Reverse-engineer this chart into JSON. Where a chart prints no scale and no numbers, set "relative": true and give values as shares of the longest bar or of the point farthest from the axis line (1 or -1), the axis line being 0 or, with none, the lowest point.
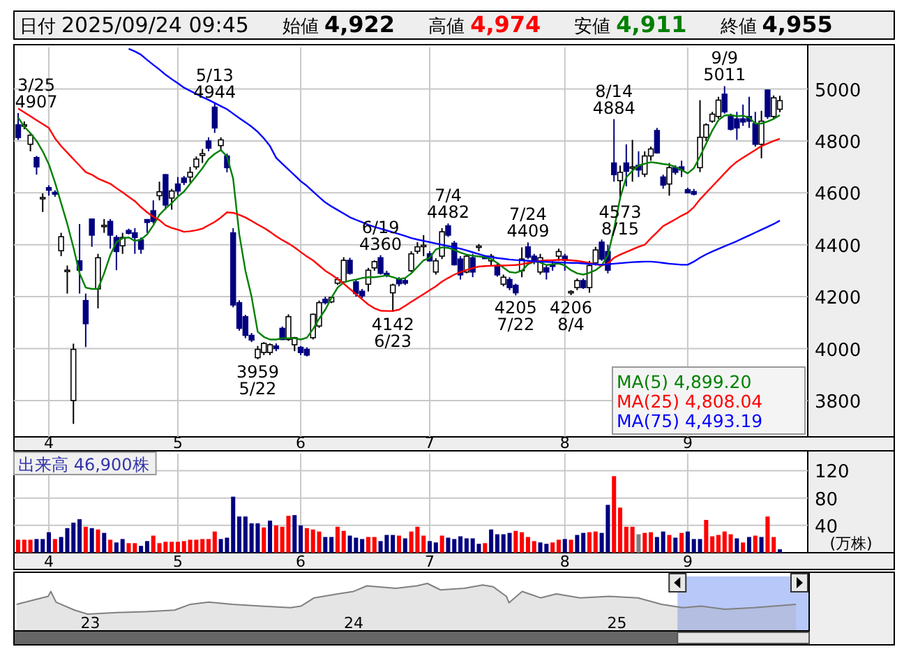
{
  "chart_data": [
    {
      "type": "candlestick",
      "categories": [
        null,
        null,
        null,
        null,
        null,
        "4",
        null,
        null,
        null,
        null,
        null,
        null,
        null,
        null,
        null,
        null,
        null,
        null,
        null,
        null,
        null,
        null,
        null,
        null,
        null,
        null,
        "5",
        null,
        null,
        null,
        null,
        null,
        null,
        null,
        null,
        null,
        null,
        null,
        null,
        null,
        null,
        null,
        null,
        null,
        null,
        null,
        "6",
        null,
        null,
        null,
        null,
        null,
        null,
        null,
        null,
        null,
        null,
        null,
        null,
        null,
        null,
        null,
        null,
        null,
        null,
        null,
        null,
        "7",
        null,
        null,
        null,
        null,
        null,
        null,
        null,
        null,
        null,
        null,
        null,
        null,
        null,
        null,
        null,
        null,
        null,
        null,
        null,
        null,
        null,
        "8",
        null,
        null,
        null,
        null,
        null,
        null,
        null,
        null,
        null,
        null,
        null,
        null,
        null,
        null,
        null,
        null,
        null,
        null,
        null,
        "9",
        null,
        null,
        null,
        null,
        null,
        null,
        null,
        null,
        null,
        null,
        null,
        null,
        null,
        null,
        null
      ],
      "ohlc": [
        [
          4862,
          4907,
          4804,
          4813
        ],
        [
          4858,
          4875,
          4845,
          4862
        ],
        [
          4787,
          4831,
          4760,
          4822
        ],
        [
          4736,
          4742,
          4670,
          4700
        ],
        [
          4578,
          4598,
          4526,
          4582
        ],
        [
          4620,
          4629,
          4589,
          4610
        ],
        [
          4602,
          4610,
          4585,
          4595
        ],
        [
          4377,
          4446,
          4356,
          4431
        ],
        [
          4300,
          4320,
          4212,
          4302
        ],
        [
          3800,
          4019,
          3710,
          3997
        ],
        [
          4338,
          4480,
          4212,
          4302
        ],
        [
          4185,
          4212,
          4006,
          4096
        ],
        [
          4499,
          4500,
          4392,
          4437
        ],
        [
          4230,
          4365,
          4155,
          4350
        ],
        [
          4470,
          4499,
          4446,
          4475
        ],
        [
          4490,
          4499,
          4385,
          4437
        ],
        [
          4428,
          4437,
          4302,
          4374
        ],
        [
          4396,
          4446,
          4365,
          4428
        ],
        [
          4455,
          4462,
          4440,
          4444
        ],
        [
          4446,
          4464,
          4365,
          4428
        ],
        [
          4419,
          4428,
          4365,
          4383
        ],
        [
          4497,
          4499,
          4446,
          4486
        ],
        [
          4531,
          4571,
          4482,
          4490
        ],
        [
          4589,
          4643,
          4571,
          4604
        ],
        [
          4670,
          4672,
          4535,
          4553
        ],
        [
          4580,
          4615,
          4535,
          4607
        ],
        [
          4634,
          4661,
          4590,
          4607
        ],
        [
          4657,
          4665,
          4630,
          4640
        ],
        [
          4661,
          4700,
          4640,
          4679
        ],
        [
          4700,
          4740,
          4690,
          4730
        ],
        [
          4744,
          4769,
          4715,
          4751
        ],
        [
          4800,
          4814,
          4760,
          4772
        ],
        [
          4930,
          4944,
          4831,
          4850
        ],
        [
          4782,
          4814,
          4760,
          4804
        ],
        [
          4742,
          4751,
          4679,
          4697
        ],
        [
          4446,
          4464,
          4159,
          4168
        ],
        [
          4177,
          4186,
          4069,
          4078
        ],
        [
          4123,
          4130,
          4040,
          4051
        ],
        [
          4051,
          4060,
          4025,
          4033
        ],
        [
          3965,
          4010,
          3959,
          3997
        ],
        [
          3985,
          4025,
          3975,
          4020
        ],
        [
          3985,
          4020,
          3975,
          4015
        ],
        [
          4010,
          4020,
          3990,
          4000
        ],
        [
          4078,
          4085,
          4033,
          4035
        ],
        [
          4035,
          4132,
          4030,
          4123
        ],
        [
          4015,
          4045,
          3990,
          4042
        ],
        [
          4005,
          4010,
          3975,
          3985
        ],
        [
          3997,
          4005,
          3970,
          3975
        ],
        [
          4042,
          4135,
          4035,
          4132
        ],
        [
          4087,
          4185,
          4080,
          4177
        ],
        [
          4190,
          4200,
          4170,
          4177
        ],
        [
          4180,
          4200,
          4175,
          4197
        ],
        [
          4252,
          4275,
          4245,
          4266
        ],
        [
          4257,
          4352,
          4250,
          4340
        ],
        [
          4340,
          4350,
          4285,
          4290
        ],
        [
          4257,
          4266,
          4200,
          4212
        ],
        [
          4221,
          4230,
          4195,
          4203
        ],
        [
          4248,
          4311,
          4220,
          4302
        ],
        [
          4311,
          4340,
          4300,
          4335
        ],
        [
          4350,
          4360,
          4285,
          4290
        ],
        [
          4290,
          4300,
          4275,
          4282
        ],
        [
          4215,
          4250,
          4142,
          4245
        ],
        [
          4266,
          4275,
          4240,
          4250
        ],
        [
          4262,
          4270,
          4245,
          4252
        ],
        [
          4300,
          4375,
          4295,
          4365
        ],
        [
          4375,
          4410,
          4365,
          4392
        ],
        [
          4395,
          4437,
          4356,
          4398
        ],
        [
          4365,
          4375,
          4335,
          4338
        ],
        [
          4295,
          4348,
          4285,
          4338
        ],
        [
          4356,
          4464,
          4345,
          4450
        ],
        [
          4473,
          4482,
          4430,
          4437
        ],
        [
          4406,
          4415,
          4320,
          4323
        ],
        [
          4345,
          4356,
          4266,
          4284
        ],
        [
          4295,
          4362,
          4290,
          4356
        ],
        [
          4350,
          4365,
          4275,
          4295
        ],
        [
          4392,
          4403,
          4375,
          4395
        ],
        [
          4352,
          4358,
          4345,
          4350
        ],
        [
          4338,
          4365,
          4320,
          4356
        ],
        [
          4320,
          4330,
          4277,
          4284
        ],
        [
          4248,
          4285,
          4240,
          4275
        ],
        [
          4266,
          4275,
          4225,
          4235
        ],
        [
          4244,
          4250,
          4205,
          4215
        ],
        [
          4300,
          4390,
          4275,
          4345
        ],
        [
          4392,
          4409,
          4345,
          4352
        ],
        [
          4356,
          4365,
          4325,
          4338
        ],
        [
          4295,
          4365,
          4285,
          4350
        ],
        [
          4311,
          4320,
          4266,
          4295
        ],
        [
          4322,
          4338,
          4300,
          4320
        ],
        [
          4356,
          4385,
          4338,
          4374
        ],
        [
          4356,
          4365,
          4300,
          4340
        ],
        [
          4215,
          4225,
          4206,
          4220
        ],
        [
          4235,
          4270,
          4225,
          4262
        ],
        [
          4262,
          4270,
          4230,
          4235
        ],
        [
          4235,
          4338,
          4215,
          4320
        ],
        [
          4330,
          4392,
          4320,
          4380
        ],
        [
          4410,
          4420,
          4338,
          4345
        ],
        [
          4374,
          4400,
          4290,
          4302
        ],
        [
          4715,
          4884,
          4643,
          4670
        ],
        [
          4647,
          4705,
          4573,
          4679
        ],
        [
          4715,
          4787,
          4625,
          4683
        ],
        [
          4697,
          4804,
          4643,
          4700
        ],
        [
          4706,
          4760,
          4661,
          4688
        ],
        [
          4672,
          4760,
          4661,
          4742
        ],
        [
          4742,
          4778,
          4724,
          4769
        ],
        [
          4840,
          4850,
          4751,
          4754
        ],
        [
          4661,
          4670,
          4616,
          4630
        ],
        [
          4634,
          4715,
          4589,
          4697
        ],
        [
          4697,
          4706,
          4670,
          4679
        ],
        [
          4700,
          4724,
          4661,
          4688
        ],
        [
          4612,
          4620,
          4600,
          4600
        ],
        [
          4605,
          4615,
          4590,
          4595
        ],
        [
          4697,
          4957,
          4680,
          4814
        ],
        [
          4814,
          4868,
          4800,
          4862
        ],
        [
          4876,
          4912,
          4870,
          4903
        ],
        [
          4894,
          4970,
          4885,
          4957
        ],
        [
          4980,
          5011,
          4905,
          4912
        ],
        [
          4894,
          4905,
          4840,
          4845
        ],
        [
          4885,
          4912,
          4804,
          4850
        ],
        [
          4885,
          4940,
          4858,
          4873
        ],
        [
          4894,
          4970,
          4850,
          4876
        ],
        [
          4867,
          4912,
          4778,
          4787
        ],
        [
          4787,
          4916,
          4733,
          4876
        ],
        [
          4996,
          4998,
          4885,
          4894
        ],
        [
          4894,
          4975,
          4885,
          4966
        ],
        [
          4922,
          4974,
          4911,
          4955
        ]
      ],
      "colors": [
        "#000080",
        "#ffffff",
        "#ffffff",
        "#000080",
        "#ffffff",
        "#000080",
        "#000080",
        "#ffffff",
        "#ffffff",
        "#ffffff",
        "#000080",
        "#000080",
        "#000080",
        "#ffffff",
        "#ffffff",
        "#000080",
        "#000080",
        "#ffffff",
        "#000080",
        "#000080",
        "#000080",
        "#000080",
        "#000080",
        "#ffffff",
        "#000080",
        "#ffffff",
        "#000080",
        "#000080",
        "#ffffff",
        "#ffffff",
        "#ffffff",
        "#000080",
        "#000080",
        "#ffffff",
        "#000080",
        "#000080",
        "#000080",
        "#000080",
        "#000080",
        "#ffffff",
        "#ffffff",
        "#ffffff",
        "#000080",
        "#000080",
        "#ffffff",
        "#ffffff",
        "#000080",
        "#000080",
        "#ffffff",
        "#ffffff",
        "#000080",
        "#ffffff",
        "#ffffff",
        "#ffffff",
        "#000080",
        "#000080",
        "#000080",
        "#ffffff",
        "#ffffff",
        "#000080",
        "#000080",
        "#ffffff",
        "#000080",
        "#000080",
        "#ffffff",
        "#ffffff",
        "#ffffff",
        "#000080",
        "#ffffff",
        "#ffffff",
        "#000080",
        "#000080",
        "#000080",
        "#ffffff",
        "#000080",
        "#ffffff",
        "#000080",
        "#ffffff",
        "#000080",
        "#ffffff",
        "#000080",
        "#000080",
        "#ffffff",
        "#000080",
        "#000080",
        "#ffffff",
        "#000080",
        "#000080",
        "#ffffff",
        "#000080",
        "#ffffff",
        "#ffffff",
        "#000080",
        "#ffffff",
        "#ffffff",
        "#000080",
        "#000080",
        "#000080",
        "#ffffff",
        "#000080",
        "#ffffff",
        "#000080",
        "#ffffff",
        "#ffffff",
        "#000080",
        "#000080",
        "#ffffff",
        "#000080",
        "#000080",
        "#000080",
        "#000080",
        "#ffffff",
        "#ffffff",
        "#ffffff",
        "#ffffff",
        "#000080",
        "#000080",
        "#000080",
        "#000080",
        "#000080",
        "#000080",
        "#ffffff",
        "#000080",
        "#ffffff",
        "#ffffff"
      ],
      "series": [
        {
          "type": "line",
          "name": "MA(5) 4,899.20",
          "color": "#008000",
          "values": [
            4890,
            4855,
            4830,
            4800,
            4760,
            4710,
            4640,
            4560,
            4480,
            4390,
            4290,
            4235,
            4230,
            4230,
            4290,
            4360,
            4410,
            4425,
            4428,
            4415,
            4420,
            4440,
            4475,
            4515,
            4540,
            4560,
            4585,
            4605,
            4635,
            4665,
            4695,
            4730,
            4750,
            4765,
            4740,
            4655,
            4440,
            4300,
            4200,
            4065,
            4045,
            4035,
            4035,
            4040,
            4040,
            4040,
            4035,
            4042,
            4075,
            4115,
            4150,
            4195,
            4235,
            4255,
            4262,
            4266,
            4272,
            4275,
            4275,
            4278,
            4282,
            4275,
            4268,
            4272,
            4290,
            4315,
            4340,
            4350,
            4382,
            4390,
            4388,
            4380,
            4370,
            4362,
            4358,
            4355,
            4352,
            4345,
            4330,
            4312,
            4295,
            4292,
            4300,
            4325,
            4335,
            4332,
            4322,
            4325,
            4328,
            4320,
            4302,
            4290,
            4285,
            4292,
            4302,
            4320,
            4360,
            4460,
            4580,
            4660,
            4685,
            4705,
            4712,
            4718,
            4715,
            4711,
            4708,
            4700,
            4688,
            4675,
            4695,
            4740,
            4790,
            4840,
            4880,
            4898,
            4900,
            4895,
            4897,
            4890,
            4867,
            4867,
            4875,
            4885,
            4899
          ]
        },
        {
          "type": "line",
          "name": "MA(25) 4,808.04",
          "color": "#ff0000",
          "values": [
            4925,
            4910,
            4895,
            4880,
            4865,
            4850,
            4810,
            4780,
            4755,
            4730,
            4705,
            4680,
            4670,
            4655,
            4645,
            4635,
            4618,
            4602,
            4585,
            4568,
            4545,
            4525,
            4508,
            4495,
            4475,
            4465,
            4458,
            4450,
            4452,
            4456,
            4462,
            4475,
            4488,
            4505,
            4525,
            4523,
            4515,
            4505,
            4492,
            4478,
            4465,
            4450,
            4433,
            4418,
            4405,
            4390,
            4372,
            4355,
            4340,
            4320,
            4300,
            4285,
            4268,
            4250,
            4230,
            4210,
            4190,
            4170,
            4155,
            4146,
            4145,
            4145,
            4150,
            4165,
            4180,
            4195,
            4210,
            4225,
            4240,
            4258,
            4272,
            4285,
            4295,
            4303,
            4310,
            4316,
            4318,
            4319,
            4320,
            4320,
            4321,
            4322,
            4325,
            4330,
            4335,
            4338,
            4340,
            4340,
            4342,
            4342,
            4340,
            4338,
            4334,
            4330,
            4325,
            4320,
            4328,
            4350,
            4362,
            4372,
            4382,
            4392,
            4400,
            4425,
            4448,
            4472,
            4485,
            4498,
            4512,
            4524,
            4545,
            4575,
            4600,
            4625,
            4650,
            4675,
            4700,
            4720,
            4735,
            4750,
            4765,
            4780,
            4790,
            4800,
            4808
          ]
        },
        {
          "type": "line",
          "name": "MA(75) 4,493.19",
          "color": "#0000ff",
          "values": [
            null,
            null,
            null,
            null,
            null,
            null,
            null,
            null,
            null,
            null,
            null,
            null,
            null,
            null,
            null,
            null,
            null,
            null,
            5155,
            5145,
            5132,
            5112,
            5093,
            5075,
            5055,
            5038,
            5022,
            5005,
            4993,
            4981,
            4969,
            4958,
            4946,
            4934,
            4922,
            4905,
            4888,
            4872,
            4855,
            4835,
            4810,
            4780,
            4735,
            4712,
            4690,
            4668,
            4645,
            4627,
            4605,
            4584,
            4563,
            4548,
            4534,
            4520,
            4506,
            4496,
            4487,
            4477,
            4469,
            4462,
            4455,
            4448,
            4441,
            4434,
            4426,
            4420,
            4415,
            4410,
            4405,
            4400,
            4395,
            4390,
            4385,
            4378,
            4371,
            4364,
            4357,
            4353,
            4349,
            4346,
            4343,
            4341,
            4340,
            4338,
            4336,
            4335,
            4334,
            4333,
            4332,
            4331,
            4330,
            4330,
            4328,
            4326,
            4325,
            4323,
            4325,
            4327,
            4329,
            4331,
            4333,
            4334,
            4335,
            4335,
            4333,
            4330,
            4327,
            4325,
            4323,
            4323,
            4335,
            4350,
            4363,
            4374,
            4384,
            4394,
            4404,
            4414,
            4425,
            4436,
            4447,
            4458,
            4469,
            4480,
            4493
          ]
        }
      ],
      "ylim": [
        3660,
        5160
      ],
      "yticks": [
        3800,
        4000,
        4200,
        4400,
        4600,
        4800,
        5000
      ],
      "grid": true,
      "legend": "bottom right",
      "annotations": [
        "日付 2025/09/24 09:45",
        "始値 4,922",
        "高値 4,974",
        "安値 4,911",
        "終値 4,955",
        {
          "text": "3/25 4907",
          "y": 4907
        },
        {
          "text": "5/13 4944",
          "y": 4944
        },
        {
          "text": "3959 5/22",
          "y": 3959
        },
        {
          "text": "6/19 4360",
          "y": 4360
        },
        {
          "text": "4142 6/23",
          "y": 4142
        },
        {
          "text": "7/4 4482",
          "y": 4482
        },
        {
          "text": "7/24 4409",
          "y": 4409
        },
        {
          "text": "4205 7/22",
          "y": 4205
        },
        {
          "text": "4206 8/4",
          "y": 4206
        },
        {
          "text": "8/14 4884",
          "y": 4884
        },
        {
          "text": "4573 8/15",
          "y": 4573
        },
        {
          "text": "9/9 5011",
          "y": 5011
        }
      ]
    },
    {
      "type": "bar",
      "categories": [
        null,
        null,
        null,
        null,
        null,
        "4",
        null,
        null,
        null,
        null,
        null,
        null,
        null,
        null,
        null,
        null,
        null,
        null,
        null,
        null,
        null,
        null,
        null,
        null,
        null,
        null,
        "5",
        null,
        null,
        null,
        null,
        null,
        null,
        null,
        null,
        null,
        null,
        null,
        null,
        null,
        null,
        null,
        null,
        null,
        null,
        null,
        "6",
        null,
        null,
        null,
        null,
        null,
        null,
        null,
        null,
        null,
        null,
        null,
        null,
        null,
        null,
        null,
        null,
        null,
        null,
        null,
        null,
        "7",
        null,
        null,
        null,
        null,
        null,
        null,
        null,
        null,
        null,
        null,
        null,
        null,
        null,
        null,
        null,
        null,
        null,
        null,
        null,
        null,
        null,
        "8",
        null,
        null,
        null,
        null,
        null,
        null,
        null,
        null,
        null,
        null,
        null,
        null,
        null,
        null,
        null,
        null,
        null,
        null,
        null,
        "9",
        null,
        null,
        null,
        null,
        null,
        null,
        null,
        null,
        null,
        null,
        null,
        null,
        null,
        null,
        null
      ],
      "values": [
        19,
        19,
        19,
        20,
        20,
        30,
        20,
        23,
        36,
        44,
        49,
        38,
        36,
        34,
        29,
        19,
        15,
        20,
        14,
        14,
        10,
        17,
        25,
        14,
        16,
        16,
        16,
        17,
        19,
        19,
        20,
        20,
        31,
        20,
        22,
        82,
        53,
        53,
        43,
        43,
        37,
        47,
        40,
        38,
        54,
        55,
        40,
        36,
        34,
        31,
        23,
        23,
        38,
        32,
        25,
        22,
        20,
        23,
        23,
        17,
        26,
        26,
        25,
        21,
        31,
        38,
        25,
        17,
        15,
        25,
        22,
        20,
        24,
        21,
        21,
        13,
        14,
        34,
        27,
        27,
        29,
        32,
        30,
        23,
        17,
        15,
        13,
        15,
        19,
        20,
        19,
        26,
        29,
        30,
        31,
        29,
        70,
        112,
        66,
        38,
        38,
        27,
        29,
        30,
        23,
        31,
        26,
        22,
        29,
        31,
        20,
        20,
        48,
        24,
        26,
        31,
        27,
        21,
        15,
        23,
        25,
        23,
        53,
        23,
        5
      ],
      "colors": [
        "#ff0000",
        "#ff0000",
        "#ff0000",
        "#000080",
        "#000080",
        "#000080",
        "#ff0000",
        "#000080",
        "#000080",
        "#000080",
        "#000080",
        "#ff0000",
        "#000080",
        "#ff0000",
        "#000080",
        "#ff0000",
        "#000080",
        "#000080",
        "#ff0000",
        "#ff0000",
        "#000080",
        "#000080",
        "#ff0000",
        "#ff0000",
        "#ff0000",
        "#ff0000",
        "#ff0000",
        "#ff0000",
        "#ff0000",
        "#ff0000",
        "#ff0000",
        "#ff0000",
        "#ff0000",
        "#000080",
        "#000080",
        "#000080",
        "#000080",
        "#000080",
        "#000080",
        "#000080",
        "#ff0000",
        "#000080",
        "#ff0000",
        "#ff0000",
        "#ff0000",
        "#000080",
        "#000080",
        "#ff0000",
        "#ff0000",
        "#ff0000",
        "#000080",
        "#000080",
        "#ff0000",
        "#ff0000",
        "#000080",
        "#000080",
        "#000080",
        "#ff0000",
        "#ff0000",
        "#000080",
        "#000080",
        "#000080",
        "#ff0000",
        "#000080",
        "#ff0000",
        "#ff0000",
        "#ff0000",
        "#000080",
        "#000080",
        "#ff0000",
        "#000080",
        "#000080",
        "#000080",
        "#000080",
        "#000080",
        "#000080",
        "#ff0000",
        "#000080",
        "#000080",
        "#000080",
        "#000080",
        "#ff0000",
        "#ff0000",
        "#ff0000",
        "#ff0000",
        "#000080",
        "#000080",
        "#ff0000",
        "#ff0000",
        "#000080",
        "#ff0000",
        "#000080",
        "#000080",
        "#ff0000",
        "#ff0000",
        "#000080",
        "#000080",
        "#ff0000",
        "#ff0000",
        "#ff0000",
        "#ff0000",
        "#808080",
        "#ff0000",
        "#ff0000",
        "#000080",
        "#000080",
        "#ff0000",
        "#000080",
        "#ff0000",
        "#000080",
        "#000080",
        "#000080",
        "#ff0000",
        "#ff0000",
        "#ff0000",
        "#ff0000",
        "#ff0000",
        "#000080",
        "#ff0000",
        "#000080",
        "#ff0000",
        "#000080",
        "#ff0000",
        "#ff0000",
        "#000080"
      ],
      "ylim": [
        0,
        145
      ],
      "yticks": [
        40,
        80,
        120
      ],
      "ylabel": "(万株)",
      "grid": true,
      "annotations": [
        "出来高 46,900株"
      ]
    },
    {
      "type": "area",
      "relative": true,
      "color": "#808080",
      "x": [
        22.72,
        22.79,
        22.84,
        22.85,
        22.87,
        22.94,
        22.99,
        23.1,
        23.21,
        23.32,
        23.38,
        23.45,
        23.54,
        23.65,
        23.76,
        23.8,
        23.85,
        23.94,
        24.0,
        24.05,
        24.16,
        24.24,
        24.28,
        24.33,
        24.42,
        24.49,
        24.53,
        24.58,
        24.59,
        24.64,
        24.71,
        24.77,
        24.86,
        24.97,
        25.08,
        25.17,
        25.25,
        25.32,
        25.41,
        25.52,
        25.68
      ],
      "values": [
        0.32,
        0.47,
        0.58,
        0.74,
        0.39,
        0.13,
        0,
        0.05,
        0.08,
        0.13,
        0.32,
        0.39,
        0.32,
        0.26,
        0.21,
        0.26,
        0.53,
        0.66,
        0.74,
        0.92,
        0.84,
        0.92,
        1,
        0.79,
        0.84,
        0.95,
        0.89,
        0.58,
        0.37,
        0.74,
        0.53,
        0.66,
        0.53,
        0.58,
        0.53,
        0.32,
        0.21,
        0.26,
        0.16,
        0.21,
        0.32
      ],
      "xlim": [
        22.71,
        25.73
      ],
      "xticks": [
        23,
        24,
        25
      ],
      "bands": [
        {
          "axis": "x",
          "from": 25.23,
          "to": 25.73,
          "color": "#b8c8f8"
        }
      ]
    }
  ]
}
